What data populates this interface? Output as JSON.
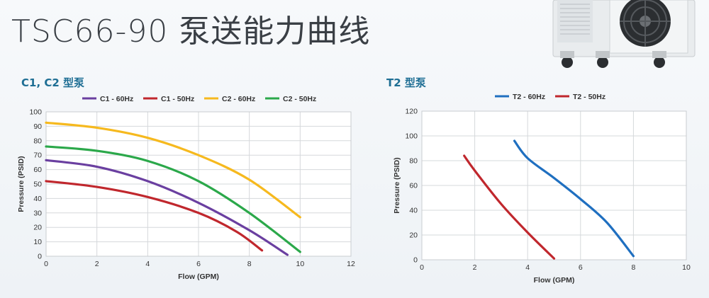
{
  "page": {
    "title": "TSC66-90 泵送能力曲线"
  },
  "chart_data": [
    {
      "type": "line",
      "title": "C1, C2 型泵",
      "xlabel": "Flow (GPM)",
      "ylabel": "Pressure (PSID)",
      "xlim": [
        0,
        12
      ],
      "ylim": [
        0,
        100
      ],
      "xticks": [
        0,
        2,
        4,
        6,
        8,
        10,
        12
      ],
      "yticks": [
        0,
        10,
        20,
        30,
        40,
        50,
        60,
        70,
        80,
        90,
        100
      ],
      "grid": true,
      "legend_position": "top",
      "series": [
        {
          "name": "C1 - 60Hz",
          "color": "#6a3fa0",
          "points": [
            [
              0,
              66.5
            ],
            [
              2,
              62
            ],
            [
              4,
              52
            ],
            [
              6,
              37
            ],
            [
              8,
              18
            ],
            [
              9.5,
              1
            ]
          ]
        },
        {
          "name": "C1 - 50Hz",
          "color": "#c0272d",
          "points": [
            [
              0,
              52
            ],
            [
              2,
              48
            ],
            [
              4,
              41
            ],
            [
              6,
              30
            ],
            [
              7.5,
              17
            ],
            [
              8.5,
              4
            ]
          ]
        },
        {
          "name": "C2 - 60Hz",
          "color": "#f6b91e",
          "points": [
            [
              0,
              92.5
            ],
            [
              2,
              89
            ],
            [
              4,
              82
            ],
            [
              6,
              70
            ],
            [
              8,
              53
            ],
            [
              10,
              27
            ]
          ]
        },
        {
          "name": "C2 - 50Hz",
          "color": "#2ba84a",
          "points": [
            [
              0,
              76
            ],
            [
              2,
              73
            ],
            [
              4,
              66
            ],
            [
              6,
              52
            ],
            [
              8,
              30
            ],
            [
              10,
              3
            ]
          ]
        }
      ]
    },
    {
      "type": "line",
      "title": "T2 型泵",
      "xlabel": "Flow (GPM)",
      "ylabel": "Pressure (PSID)",
      "xlim": [
        0,
        10
      ],
      "ylim": [
        0,
        120
      ],
      "xticks": [
        0,
        2,
        4,
        6,
        8,
        10
      ],
      "yticks": [
        0,
        20,
        40,
        60,
        80,
        100,
        120
      ],
      "grid": true,
      "legend_position": "top",
      "series": [
        {
          "name": "T2 - 60Hz",
          "color": "#1f6fc0",
          "points": [
            [
              3.5,
              96
            ],
            [
              4,
              82
            ],
            [
              5,
              66
            ],
            [
              6,
              49
            ],
            [
              7,
              30
            ],
            [
              8,
              3
            ]
          ]
        },
        {
          "name": "T2 - 50Hz",
          "color": "#c0272d",
          "points": [
            [
              1.6,
              84
            ],
            [
              2,
              72
            ],
            [
              3,
              45
            ],
            [
              4,
              22
            ],
            [
              5,
              1
            ]
          ]
        }
      ]
    }
  ],
  "icons": {
    "product": "chiller-unit-photo"
  }
}
